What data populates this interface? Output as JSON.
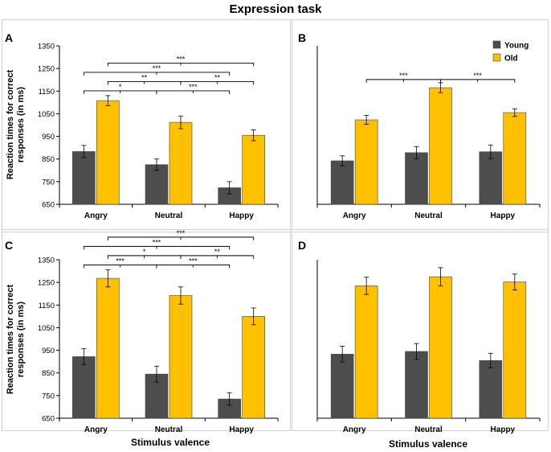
{
  "figure": {
    "title": "Expression task",
    "ylabel_line1": "Reaction times for correct",
    "ylabel_line2": "responses (in ms)",
    "xlabel": "Stimulus valence"
  },
  "colors": {
    "young": "#4d4d4d",
    "old": "#ffc000",
    "frame": "#d0d0d0",
    "axis": "#000000"
  },
  "chart_data": [
    {
      "panel": "A",
      "type": "bar",
      "categories": [
        "Angry",
        "Neutral",
        "Happy"
      ],
      "series": [
        {
          "name": "Young",
          "values": [
            883,
            825,
            723
          ],
          "errors": [
            27,
            25,
            27
          ]
        },
        {
          "name": "Old",
          "values": [
            1108,
            1012,
            955
          ],
          "errors": [
            22,
            28,
            24
          ]
        }
      ],
      "ylim": [
        650,
        1350
      ],
      "yticks": [
        650,
        750,
        850,
        950,
        1050,
        1150,
        1250,
        1350
      ],
      "legend": "none",
      "annotations": [
        {
          "label": "***",
          "from": "Angry.Old",
          "to": "Happy.Old",
          "level": 3
        },
        {
          "label": "***",
          "from": "Angry.Young",
          "to": "Happy.Young",
          "level": 2
        },
        {
          "label": "**",
          "from": "Angry.Old",
          "to": "Neutral.Old",
          "level": 1
        },
        {
          "label": "**",
          "from": "Neutral.Old",
          "to": "Happy.Old",
          "level": 1
        },
        {
          "label": "*",
          "from": "Angry.Young",
          "to": "Neutral.Young",
          "level": 0
        },
        {
          "label": "***",
          "from": "Neutral.Young",
          "to": "Happy.Young",
          "level": 0
        }
      ]
    },
    {
      "panel": "B",
      "type": "bar",
      "categories": [
        "Angry",
        "Neutral",
        "Happy"
      ],
      "series": [
        {
          "name": "Young",
          "values": [
            842,
            878,
            882
          ],
          "errors": [
            22,
            27,
            30
          ]
        },
        {
          "name": "Old",
          "values": [
            1023,
            1165,
            1055
          ],
          "errors": [
            20,
            22,
            17
          ]
        }
      ],
      "ylim": [
        650,
        1350
      ],
      "legend": "top-right",
      "annotations": [
        {
          "label": "***",
          "from": "Angry.Old",
          "to": "Neutral.Old",
          "level": 0
        },
        {
          "label": "***",
          "from": "Neutral.Old",
          "to": "Happy.Old",
          "level": 0
        }
      ]
    },
    {
      "panel": "C",
      "type": "bar",
      "categories": [
        "Angry",
        "Neutral",
        "Happy"
      ],
      "series": [
        {
          "name": "Young",
          "values": [
            922,
            845,
            735
          ],
          "errors": [
            35,
            35,
            28
          ]
        },
        {
          "name": "Old",
          "values": [
            1268,
            1192,
            1100
          ],
          "errors": [
            38,
            38,
            37
          ]
        }
      ],
      "ylim": [
        650,
        1350
      ],
      "yticks": [
        650,
        750,
        850,
        950,
        1050,
        1150,
        1250,
        1350
      ],
      "legend": "none",
      "annotations": [
        {
          "label": "***",
          "from": "Angry.Old",
          "to": "Happy.Old",
          "level": 3
        },
        {
          "label": "***",
          "from": "Angry.Young",
          "to": "Happy.Young",
          "level": 2
        },
        {
          "label": "*",
          "from": "Angry.Old",
          "to": "Neutral.Old",
          "level": 1
        },
        {
          "label": "**",
          "from": "Neutral.Old",
          "to": "Happy.Old",
          "level": 1
        },
        {
          "label": "***",
          "from": "Angry.Young",
          "to": "Neutral.Young",
          "level": 0
        },
        {
          "label": "***",
          "from": "Neutral.Young",
          "to": "Happy.Young",
          "level": 0
        }
      ]
    },
    {
      "panel": "D",
      "type": "bar",
      "categories": [
        "Angry",
        "Neutral",
        "Happy"
      ],
      "series": [
        {
          "name": "Young",
          "values": [
            933,
            945,
            905
          ],
          "errors": [
            35,
            35,
            32
          ]
        },
        {
          "name": "Old",
          "values": [
            1235,
            1275,
            1252
          ],
          "errors": [
            38,
            40,
            35
          ]
        }
      ],
      "ylim": [
        650,
        1350
      ],
      "legend": "none",
      "annotations": []
    }
  ]
}
